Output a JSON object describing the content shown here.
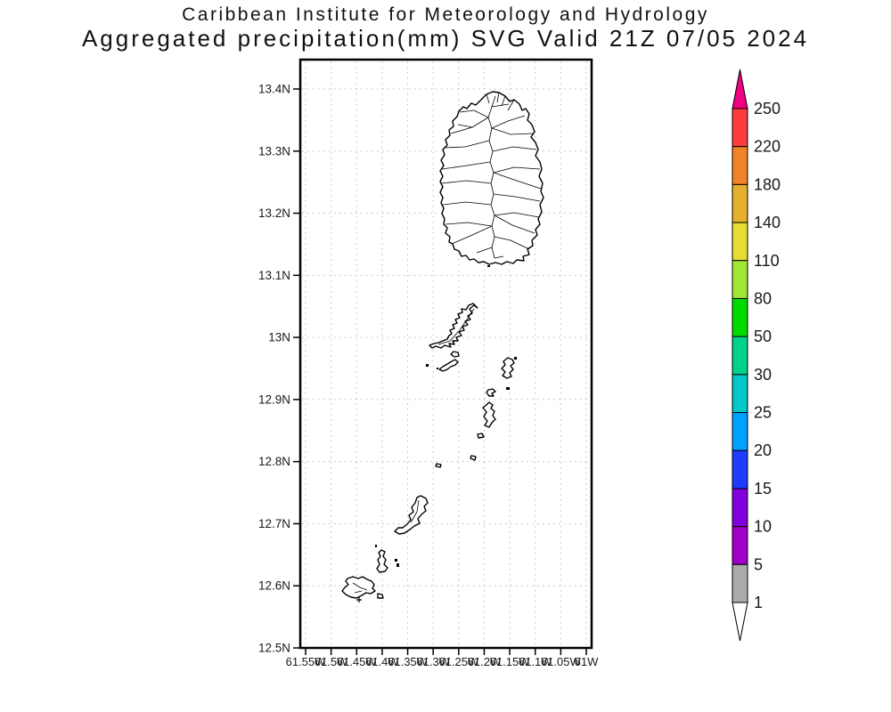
{
  "header": {
    "line1": "Caribbean Institute for Meteorology and Hydrology",
    "line2": "Aggregated precipitation(mm) SVG Valid 21Z 07/05 2024"
  },
  "map": {
    "lat_labels": [
      "13.4N",
      "13.3N",
      "13.2N",
      "13.1N",
      "13N",
      "12.9N",
      "12.8N",
      "12.7N",
      "12.6N",
      "12.5N"
    ],
    "lon_labels": [
      "61.55W",
      "61.5W",
      "61.45W",
      "61.4W",
      "61.35W",
      "61.3W",
      "61.25W",
      "61.2W",
      "61.15W",
      "61.1W",
      "61.05W",
      "61W"
    ]
  },
  "colorbar": {
    "labels": [
      "250",
      "220",
      "180",
      "140",
      "110",
      "80",
      "50",
      "30",
      "25",
      "20",
      "15",
      "10",
      "5",
      "1"
    ],
    "colors": [
      "#FA3C3C",
      "#F08228",
      "#E6AF2D",
      "#E6DC32",
      "#A0E632",
      "#00DC00",
      "#00D28C",
      "#00C8C8",
      "#00A0FF",
      "#1E3CFF",
      "#8200DC",
      "#A000C8",
      "#AAAAAA"
    ],
    "arrow_top_color": "#F00082",
    "arrow_bottom_color": "#FFFFFF"
  }
}
